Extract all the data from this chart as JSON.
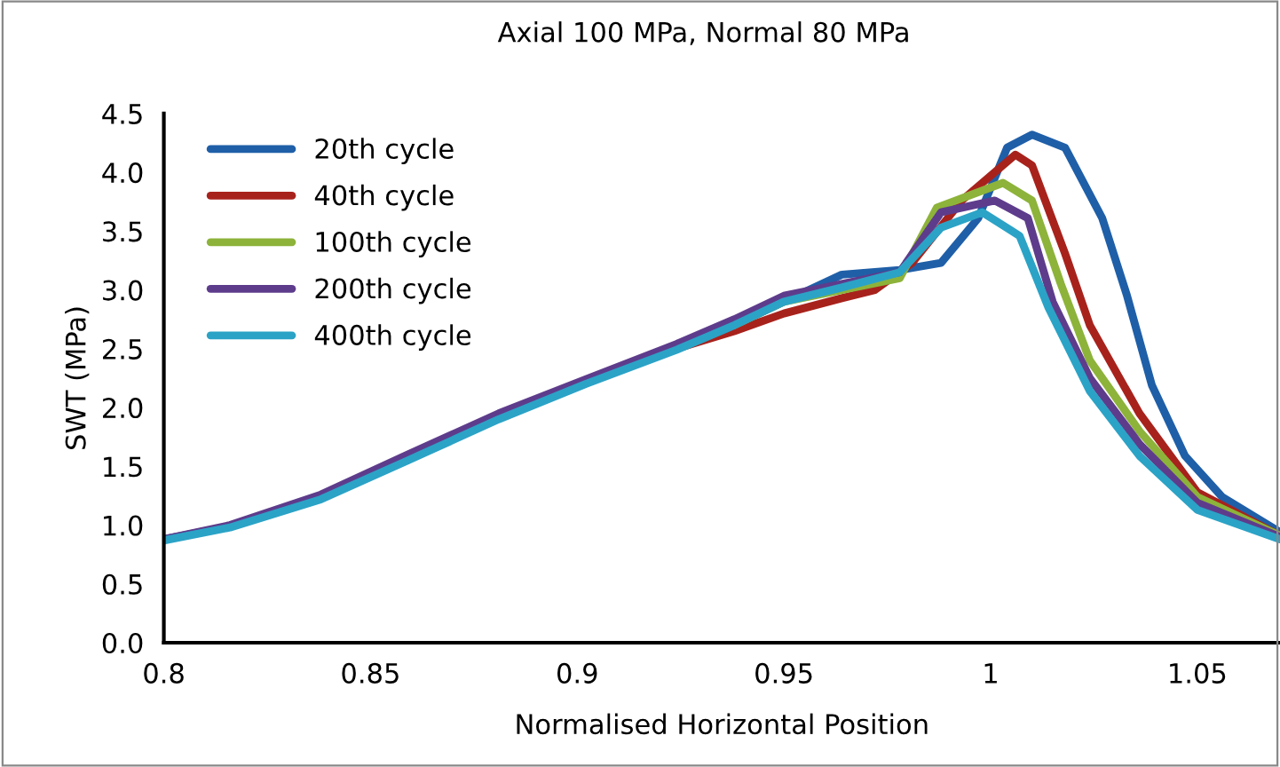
{
  "chart_data": {
    "type": "line",
    "title": "Axial 100 MPa, Normal 80 MPa",
    "xlabel": "Normalised Horizontal Position",
    "ylabel": "SWT (MPa)",
    "xlim": [
      0.8,
      1.07
    ],
    "xticks": [
      0.8,
      0.85,
      0.9,
      0.95,
      1,
      1.05
    ],
    "ylim": [
      0,
      4.5
    ],
    "yticks": [
      {
        "value": 0,
        "label": "0.0"
      },
      {
        "value": 0.5,
        "label": "0.5"
      },
      {
        "value": 1,
        "label": "1.0"
      },
      {
        "value": 1.5,
        "label": "1.5"
      },
      {
        "value": 2,
        "label": "2.0"
      },
      {
        "value": 2.5,
        "label": "2.5"
      },
      {
        "value": 3,
        "label": "3.0"
      },
      {
        "value": 3.5,
        "label": "3.5"
      },
      {
        "value": 4,
        "label": "4.0"
      },
      {
        "value": 4.5,
        "label": "4.5"
      }
    ],
    "grid": false,
    "legend": "top left",
    "marker": "none",
    "line_style": "solid",
    "series": [
      {
        "name": "20th cycle",
        "color": "#1f5fa8",
        "x": [
          0.8,
          0.816,
          0.838,
          0.859,
          0.881,
          0.902,
          0.924,
          0.938,
          0.953,
          0.964,
          0.978,
          0.988,
          0.997,
          1.004,
          1.01,
          1.018,
          1.027,
          1.033,
          1.039,
          1.047,
          1.056,
          1.07
        ],
        "values": [
          0.88,
          0.99,
          1.24,
          1.57,
          1.92,
          2.21,
          2.5,
          2.7,
          2.95,
          3.13,
          3.17,
          3.23,
          3.61,
          4.21,
          4.32,
          4.21,
          3.61,
          2.95,
          2.19,
          1.59,
          1.24,
          0.94
        ]
      },
      {
        "name": "40th cycle",
        "color": "#a8221c",
        "x": [
          0.902,
          0.924,
          0.938,
          0.95,
          0.964,
          0.972,
          0.981,
          0.993,
          1.006,
          1.01,
          1.018,
          1.024,
          1.036,
          1.05,
          1.07
        ],
        "values": [
          2.21,
          2.5,
          2.65,
          2.8,
          2.93,
          3.0,
          3.23,
          3.76,
          4.15,
          4.06,
          3.31,
          2.7,
          1.95,
          1.28,
          0.91
        ]
      },
      {
        "name": "100th cycle",
        "color": "#8db33a",
        "x": [
          0.938,
          0.95,
          0.964,
          0.978,
          0.987,
          1.003,
          1.01,
          1.017,
          1.024,
          1.036,
          1.05,
          1.07
        ],
        "values": [
          2.7,
          2.9,
          3.0,
          3.1,
          3.7,
          3.91,
          3.76,
          3.05,
          2.4,
          1.8,
          1.24,
          0.91
        ]
      },
      {
        "name": "200th cycle",
        "color": "#5e3c8c",
        "x": [
          0.8,
          0.816,
          0.838,
          0.859,
          0.881,
          0.902,
          0.924,
          0.938,
          0.95,
          0.964,
          0.978,
          0.988,
          1.001,
          1.009,
          1.015,
          1.024,
          1.036,
          1.05,
          1.07
        ],
        "values": [
          0.88,
          1.0,
          1.26,
          1.6,
          1.95,
          2.24,
          2.54,
          2.75,
          2.95,
          3.05,
          3.15,
          3.66,
          3.76,
          3.61,
          2.9,
          2.25,
          1.69,
          1.19,
          0.9
        ]
      },
      {
        "name": "400th cycle",
        "color": "#2ba3c6",
        "x": [
          0.8,
          0.816,
          0.838,
          0.859,
          0.881,
          0.902,
          0.924,
          0.938,
          0.95,
          0.964,
          0.978,
          0.988,
          0.998,
          1.007,
          1.014,
          1.024,
          1.036,
          1.05,
          1.07
        ],
        "values": [
          0.87,
          0.98,
          1.22,
          1.55,
          1.9,
          2.2,
          2.49,
          2.7,
          2.9,
          3.02,
          3.15,
          3.53,
          3.66,
          3.46,
          2.85,
          2.14,
          1.59,
          1.13,
          0.88
        ]
      }
    ]
  }
}
